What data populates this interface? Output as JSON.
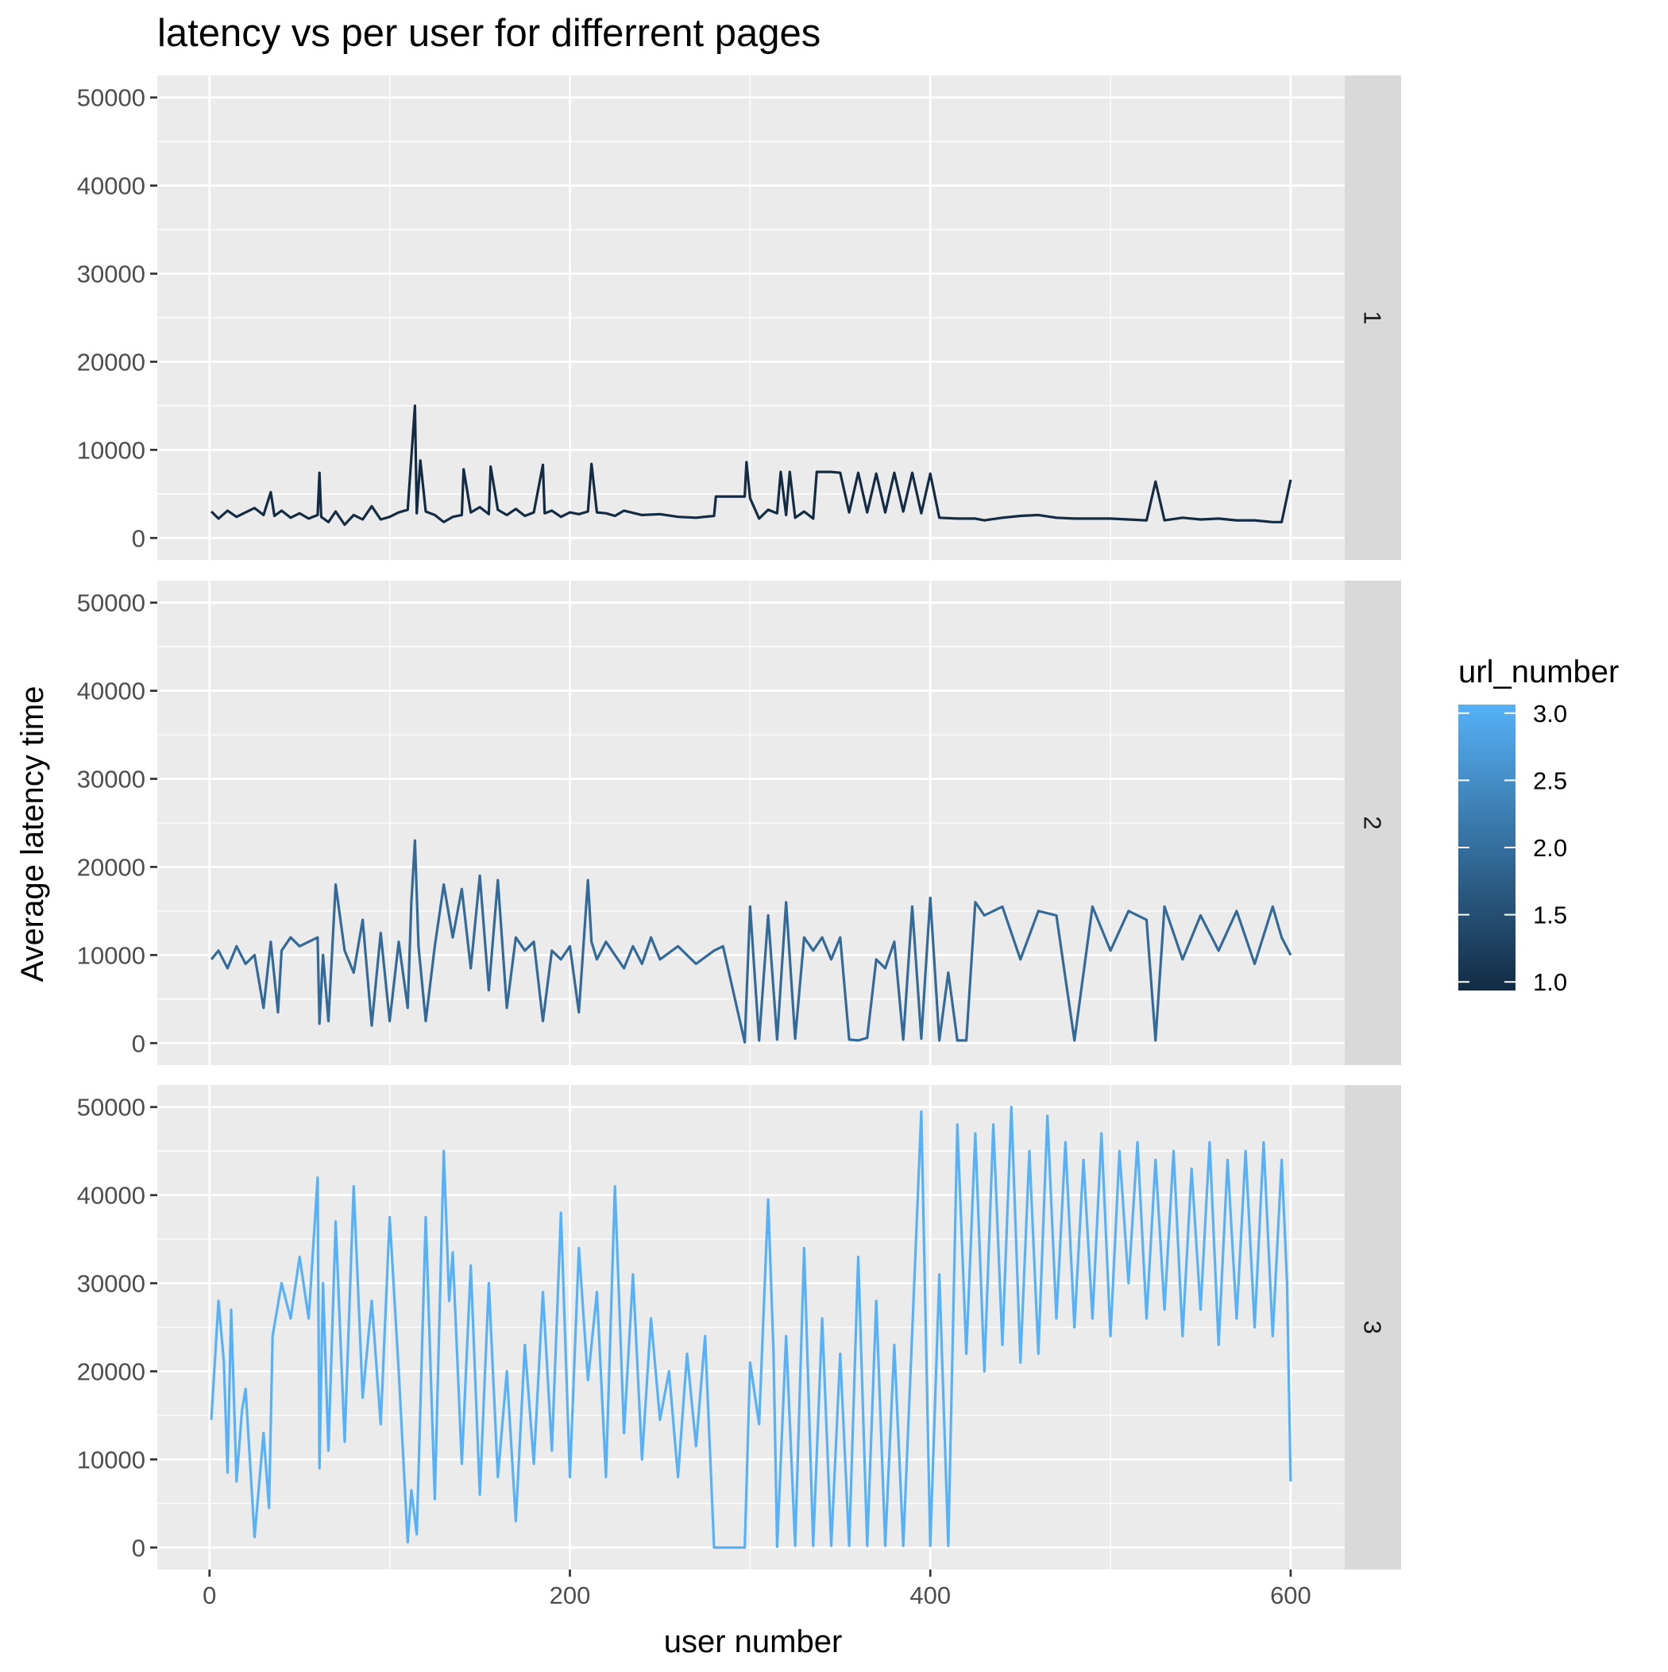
{
  "chart_data": {
    "type": "line",
    "title": "latency vs per user for differrent pages",
    "xlabel": "user number",
    "ylabel": "Average latency time",
    "xlim": [
      -29,
      630
    ],
    "ylim": [
      -2500,
      52500
    ],
    "x_ticks": [
      0,
      200,
      400,
      600
    ],
    "y_ticks": [
      0,
      10000,
      20000,
      30000,
      40000,
      50000
    ],
    "x_tick_labels": [
      "0",
      "200",
      "400",
      "600"
    ],
    "y_tick_labels": [
      "0",
      "10000",
      "20000",
      "30000",
      "40000",
      "50000"
    ],
    "grid": true,
    "facet_labels": [
      "1",
      "2",
      "3"
    ],
    "legend": {
      "title": "url_number",
      "position": "right",
      "type": "colorbar",
      "range": [
        1.0,
        3.0
      ],
      "breaks": [
        1.0,
        1.5,
        2.0,
        2.5,
        3.0
      ],
      "break_labels": [
        "1.0",
        "1.5",
        "2.0",
        "2.5",
        "3.0"
      ],
      "color_low": "#132b43",
      "color_high": "#56b1f7"
    },
    "series": [
      {
        "url_number": 1,
        "color": "#132b43",
        "x": [
          1,
          5,
          10,
          15,
          20,
          25,
          30,
          34,
          36,
          40,
          45,
          50,
          55,
          60,
          61,
          62,
          66,
          70,
          75,
          80,
          85,
          90,
          95,
          100,
          105,
          110,
          114,
          115,
          117,
          120,
          125,
          130,
          135,
          140,
          141,
          145,
          150,
          155,
          156,
          160,
          165,
          170,
          175,
          180,
          185,
          186,
          190,
          195,
          200,
          205,
          210,
          212,
          215,
          220,
          225,
          230,
          240,
          250,
          260,
          270,
          280,
          281,
          297,
          298,
          300,
          305,
          310,
          315,
          317,
          320,
          322,
          325,
          330,
          335,
          337,
          340,
          345,
          350,
          355,
          360,
          365,
          370,
          375,
          380,
          385,
          390,
          395,
          400,
          405,
          415,
          420,
          425,
          430,
          440,
          450,
          460,
          470,
          480,
          490,
          500,
          510,
          520,
          525,
          530,
          540,
          550,
          560,
          570,
          580,
          590,
          595,
          600
        ],
        "values": [
          3000,
          2200,
          3100,
          2400,
          2900,
          3400,
          2600,
          5200,
          2500,
          3100,
          2300,
          2800,
          2200,
          2600,
          7400,
          2400,
          1800,
          3000,
          1500,
          2600,
          2100,
          3600,
          2100,
          2400,
          2900,
          3200,
          15000,
          2800,
          8800,
          3000,
          2600,
          1800,
          2400,
          2600,
          7800,
          2900,
          3500,
          2700,
          8100,
          3200,
          2600,
          3300,
          2500,
          2900,
          8300,
          2800,
          3100,
          2400,
          2900,
          2700,
          3000,
          8400,
          2900,
          2800,
          2500,
          3100,
          2600,
          2700,
          2400,
          2300,
          2500,
          4700,
          4700,
          8600,
          4500,
          2200,
          3200,
          2800,
          7500,
          2600,
          7500,
          2300,
          3000,
          2200,
          7500,
          7500,
          7500,
          7400,
          2900,
          7400,
          2900,
          7300,
          2900,
          7400,
          3000,
          7400,
          2800,
          7300,
          2300,
          2200,
          2200,
          2200,
          2000,
          2300,
          2500,
          2600,
          2300,
          2200,
          2200,
          2200,
          2100,
          2000,
          6400,
          2000,
          2300,
          2100,
          2200,
          2000,
          2000,
          1800,
          1800,
          6600
        ]
      },
      {
        "url_number": 2,
        "color": "#336a98",
        "x": [
          1,
          5,
          10,
          15,
          20,
          25,
          30,
          34,
          38,
          40,
          45,
          50,
          55,
          60,
          61,
          63,
          66,
          70,
          75,
          80,
          85,
          90,
          95,
          100,
          105,
          110,
          112,
          114,
          116,
          120,
          125,
          130,
          135,
          140,
          145,
          150,
          155,
          160,
          165,
          170,
          175,
          180,
          185,
          190,
          195,
          200,
          205,
          210,
          212,
          215,
          220,
          225,
          230,
          235,
          240,
          245,
          250,
          260,
          270,
          280,
          285,
          297,
          300,
          305,
          310,
          315,
          320,
          325,
          330,
          335,
          340,
          345,
          350,
          355,
          360,
          365,
          370,
          375,
          380,
          385,
          390,
          395,
          400,
          405,
          410,
          415,
          420,
          425,
          430,
          440,
          450,
          460,
          470,
          480,
          490,
          500,
          510,
          520,
          525,
          530,
          540,
          550,
          560,
          570,
          580,
          590,
          595,
          600
        ],
        "values": [
          9500,
          10500,
          8500,
          11000,
          9000,
          10000,
          4000,
          11500,
          3500,
          10500,
          12000,
          11000,
          11500,
          12000,
          2200,
          10000,
          2500,
          18000,
          10500,
          8000,
          14000,
          2000,
          12500,
          2500,
          11500,
          4000,
          16000,
          23000,
          11000,
          2500,
          11000,
          18000,
          12000,
          17500,
          8500,
          19000,
          6000,
          18500,
          4000,
          12000,
          10500,
          11500,
          2500,
          10500,
          9500,
          11000,
          3500,
          18500,
          11500,
          9500,
          11500,
          10000,
          8500,
          11000,
          9000,
          12000,
          9500,
          11000,
          9000,
          10500,
          11000,
          100,
          15500,
          300,
          14500,
          400,
          16000,
          500,
          12000,
          10500,
          12000,
          9500,
          12000,
          400,
          300,
          600,
          9500,
          8500,
          11500,
          400,
          15500,
          500,
          16500,
          300,
          8000,
          300,
          300,
          16000,
          14500,
          15500,
          9500,
          15000,
          14500,
          300,
          15500,
          10500,
          15000,
          14000,
          300,
          15500,
          9500,
          14500,
          10500,
          15000,
          9000,
          15500,
          12000,
          10000
        ]
      },
      {
        "url_number": 3,
        "color": "#56b1f7",
        "x": [
          1,
          5,
          8,
          10,
          12,
          15,
          18,
          20,
          25,
          30,
          33,
          35,
          40,
          45,
          50,
          55,
          60,
          61,
          63,
          66,
          70,
          75,
          80,
          85,
          90,
          95,
          100,
          105,
          110,
          112,
          115,
          120,
          125,
          130,
          133,
          135,
          140,
          145,
          150,
          155,
          160,
          165,
          170,
          175,
          180,
          185,
          190,
          195,
          200,
          205,
          210,
          215,
          220,
          225,
          230,
          235,
          240,
          245,
          250,
          255,
          260,
          265,
          270,
          275,
          280,
          281,
          297,
          300,
          305,
          310,
          313,
          315,
          320,
          325,
          330,
          335,
          340,
          345,
          350,
          355,
          360,
          365,
          370,
          375,
          380,
          385,
          390,
          395,
          400,
          405,
          410,
          415,
          420,
          425,
          430,
          435,
          440,
          445,
          450,
          455,
          460,
          465,
          470,
          475,
          480,
          485,
          490,
          495,
          500,
          505,
          510,
          515,
          520,
          525,
          530,
          535,
          540,
          545,
          550,
          555,
          560,
          565,
          570,
          575,
          580,
          585,
          590,
          595,
          598,
          600
        ],
        "values": [
          14500,
          28000,
          21000,
          8500,
          27000,
          7500,
          15500,
          18000,
          1200,
          13000,
          4500,
          24000,
          30000,
          26000,
          33000,
          26000,
          42000,
          9000,
          30000,
          11000,
          37000,
          12000,
          41000,
          17000,
          28000,
          14000,
          37500,
          20000,
          600,
          6500,
          1500,
          37500,
          5500,
          45000,
          28000,
          33500,
          9500,
          32000,
          6000,
          30000,
          8000,
          20000,
          3000,
          23000,
          9500,
          29000,
          11000,
          38000,
          8000,
          34000,
          19000,
          29000,
          8000,
          41000,
          13000,
          31000,
          10000,
          26000,
          14500,
          20000,
          8000,
          22000,
          11500,
          24000,
          0,
          0,
          0,
          21000,
          14000,
          39500,
          22000,
          100,
          24000,
          200,
          34000,
          200,
          26000,
          200,
          22000,
          200,
          33000,
          200,
          28000,
          200,
          23000,
          200,
          24500,
          49500,
          200,
          31000,
          200,
          48000,
          22000,
          47000,
          20000,
          48000,
          23000,
          50000,
          21000,
          45000,
          22000,
          49000,
          26000,
          46000,
          25000,
          44000,
          26000,
          47000,
          24000,
          45000,
          30000,
          46000,
          26000,
          44000,
          27000,
          45000,
          24000,
          43000,
          27000,
          46000,
          23000,
          44000,
          26000,
          45000,
          25000,
          46000,
          24000,
          44000,
          30000,
          7500
        ]
      }
    ]
  }
}
